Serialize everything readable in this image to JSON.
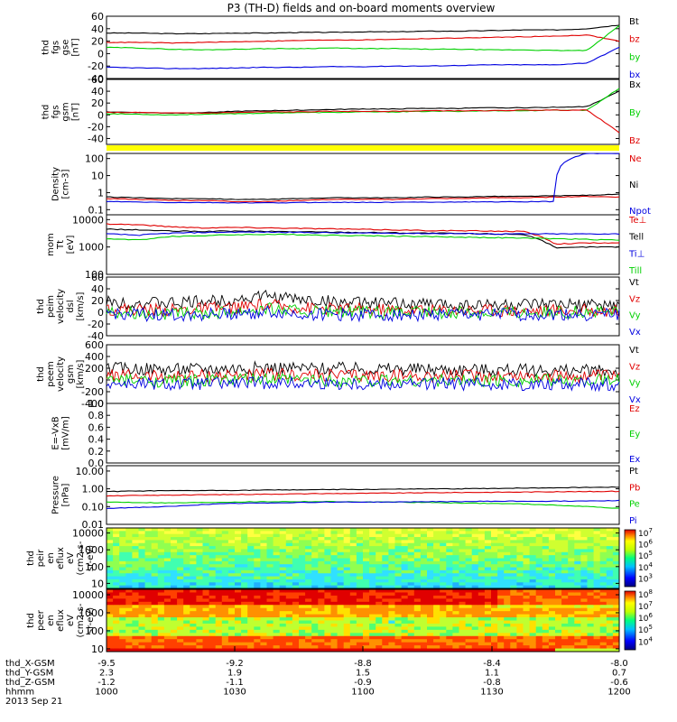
{
  "title": "P3 (TH-D) fields and on-board moments overview",
  "colors": {
    "black": "#000000",
    "red": "#e00000",
    "green": "#00d000",
    "blue": "#0000e0",
    "yellow": "#ffff00"
  },
  "chart_data": [
    {
      "type": "line",
      "id": "fgs_gse",
      "ylabel": [
        "thd",
        "fgs",
        "gse",
        "[nT]"
      ],
      "ylim": [
        -40,
        60
      ],
      "yticks": [
        "-40",
        "-20",
        "0",
        "20",
        "40",
        "60"
      ],
      "series": [
        {
          "name": "Bt",
          "color": "black",
          "label_color": "black",
          "values": [
            33,
            33,
            32,
            32,
            33,
            33,
            34,
            34,
            35,
            35,
            36,
            36,
            37,
            38,
            38,
            40,
            46
          ]
        },
        {
          "name": "bz",
          "color": "red",
          "label_color": "red",
          "values": [
            18,
            18,
            17,
            18,
            19,
            20,
            21,
            22,
            22,
            23,
            24,
            25,
            26,
            27,
            28,
            30,
            20
          ]
        },
        {
          "name": "by",
          "color": "green",
          "label_color": "green",
          "values": [
            10,
            9,
            7,
            6,
            7,
            8,
            8,
            9,
            8,
            8,
            7,
            7,
            6,
            6,
            5,
            5,
            45
          ]
        },
        {
          "name": "bx",
          "color": "blue",
          "label_color": "blue",
          "values": [
            -22,
            -23,
            -24,
            -24,
            -23,
            -22,
            -22,
            -21,
            -21,
            -20,
            -20,
            -19,
            -18,
            -18,
            -18,
            -15,
            10
          ]
        }
      ]
    },
    {
      "type": "line",
      "id": "fgs_gsm",
      "ylabel": [
        "thd",
        "fgs",
        "gsm",
        "[nT]"
      ],
      "ylim": [
        -50,
        60
      ],
      "yticks": [
        "-40",
        "-20",
        "0",
        "20",
        "40",
        "60"
      ],
      "series": [
        {
          "name": "Bx",
          "color": "black",
          "label_color": "black",
          "values": [
            5,
            4,
            3,
            4,
            6,
            7,
            8,
            9,
            10,
            10,
            11,
            11,
            12,
            12,
            13,
            14,
            40
          ]
        },
        {
          "name": "By",
          "color": "green",
          "label_color": "green",
          "values": [
            2,
            1,
            0,
            1,
            2,
            3,
            4,
            4,
            5,
            5,
            6,
            6,
            7,
            7,
            8,
            8,
            45
          ]
        },
        {
          "name": "Bz",
          "color": "red",
          "label_color": "red",
          "values": [
            4,
            4,
            3,
            3,
            4,
            5,
            5,
            6,
            6,
            6,
            7,
            7,
            7,
            8,
            8,
            8,
            -30
          ]
        }
      ]
    },
    {
      "type": "line",
      "id": "density",
      "ylabel": [
        "Density",
        "[cm-3]"
      ],
      "log": true,
      "ylim": [
        0.05,
        200
      ],
      "yticks": [
        "100",
        "10",
        "1",
        "0.1"
      ],
      "series": [
        {
          "name": "Ne",
          "color": "red",
          "label_color": "red",
          "values": [
            0.45,
            0.4,
            0.35,
            0.35,
            0.3,
            0.3,
            0.35,
            0.4,
            0.4,
            0.4,
            0.45,
            0.45,
            0.5,
            0.5,
            0.55,
            0.6,
            0.55
          ]
        },
        {
          "name": "Ni",
          "color": "black",
          "label_color": "black",
          "values": [
            0.55,
            0.5,
            0.45,
            0.45,
            0.4,
            0.4,
            0.45,
            0.5,
            0.5,
            0.5,
            0.55,
            0.55,
            0.6,
            0.6,
            0.65,
            0.7,
            0.8
          ]
        },
        {
          "name": "Npot",
          "color": "blue",
          "label_color": "blue",
          "values": [
            0.3,
            0.28,
            0.26,
            0.26,
            0.25,
            0.25,
            0.26,
            0.27,
            0.27,
            0.27,
            0.28,
            0.28,
            0.29,
            0.29,
            0.3,
            200,
            200
          ]
        }
      ]
    },
    {
      "type": "line",
      "id": "temperature",
      "ylabel": [
        "mom",
        "Tt",
        "[eV]"
      ],
      "log": true,
      "ylim": [
        100,
        15000
      ],
      "yticks": [
        "10000",
        "1000",
        "100"
      ],
      "series": [
        {
          "name": "Te⊥",
          "color": "red",
          "label_color": "red",
          "values": [
            7000,
            6500,
            5500,
            5000,
            5200,
            5000,
            4800,
            4600,
            4400,
            4200,
            4000,
            3900,
            3800,
            3700,
            1300,
            1400,
            1400
          ]
        },
        {
          "name": "Tell",
          "color": "black",
          "label_color": "black",
          "values": [
            4500,
            4200,
            3800,
            3700,
            3800,
            3700,
            3600,
            3500,
            3400,
            3300,
            3200,
            3100,
            3000,
            2900,
            900,
            1000,
            1000
          ]
        },
        {
          "name": "Ti⊥",
          "color": "blue",
          "label_color": "blue",
          "values": [
            3000,
            2700,
            3200,
            3400,
            3500,
            3500,
            3400,
            3300,
            3200,
            3200,
            3100,
            3100,
            3000,
            3000,
            3000,
            3000,
            3000
          ]
        },
        {
          "name": "Till",
          "color": "green",
          "label_color": "green",
          "values": [
            2000,
            1800,
            2400,
            2600,
            2800,
            2900,
            2800,
            2700,
            2600,
            2500,
            2400,
            2300,
            2200,
            2100,
            2000,
            1900,
            1800
          ]
        }
      ]
    },
    {
      "type": "line",
      "id": "velocity_dsl",
      "ylabel": [
        "thd",
        "peim",
        "velocity",
        "dsl",
        "[km/s]"
      ],
      "ylim": [
        -40,
        60
      ],
      "yticks": [
        "-40",
        "-20",
        "0",
        "20",
        "40",
        "60"
      ],
      "noisy": true,
      "series": [
        {
          "name": "Vt",
          "color": "black",
          "label_color": "black",
          "values": [
            18,
            16,
            15,
            18,
            22,
            28,
            22,
            18,
            15,
            14,
            14,
            13,
            13,
            12,
            12,
            12,
            12
          ]
        },
        {
          "name": "Vz",
          "color": "red",
          "label_color": "red",
          "values": [
            6,
            5,
            4,
            6,
            8,
            12,
            8,
            6,
            5,
            4,
            4,
            4,
            4,
            3,
            3,
            3,
            3
          ]
        },
        {
          "name": "Vy",
          "color": "green",
          "label_color": "green",
          "values": [
            2,
            0,
            -4,
            -2,
            2,
            6,
            2,
            0,
            -1,
            -1,
            0,
            0,
            0,
            0,
            0,
            0,
            0
          ]
        },
        {
          "name": "Vx",
          "color": "blue",
          "label_color": "blue",
          "values": [
            -2,
            -4,
            -5,
            -4,
            -2,
            0,
            -3,
            -4,
            -4,
            -4,
            -4,
            -4,
            -4,
            -4,
            -4,
            -4,
            -4
          ]
        }
      ]
    },
    {
      "type": "line",
      "id": "velocity_gsm",
      "ylabel": [
        "thd",
        "peem",
        "velocity",
        "gsm",
        "[km/s]"
      ],
      "ylim": [
        -400,
        600
      ],
      "yticks": [
        "-400",
        "-200",
        "0",
        "200",
        "400",
        "600"
      ],
      "noisy": true,
      "series": [
        {
          "name": "Vt",
          "color": "black",
          "label_color": "black",
          "values": [
            200,
            190,
            180,
            190,
            200,
            210,
            200,
            195,
            190,
            185,
            180,
            175,
            170,
            165,
            160,
            155,
            150
          ]
        },
        {
          "name": "Vz",
          "color": "red",
          "label_color": "red",
          "values": [
            80,
            70,
            60,
            70,
            80,
            90,
            80,
            75,
            70,
            70,
            70,
            70,
            70,
            65,
            60,
            60,
            60
          ]
        },
        {
          "name": "Vy",
          "color": "green",
          "label_color": "green",
          "values": [
            0,
            -10,
            -20,
            -10,
            0,
            10,
            0,
            -5,
            -10,
            -10,
            -10,
            -10,
            -10,
            -10,
            -10,
            -10,
            -10
          ]
        },
        {
          "name": "Vx",
          "color": "blue",
          "label_color": "blue",
          "values": [
            -60,
            -70,
            -80,
            -70,
            -60,
            -50,
            -60,
            -65,
            -70,
            -70,
            -70,
            -70,
            -70,
            -70,
            -70,
            -70,
            -70
          ]
        }
      ]
    },
    {
      "type": "line",
      "id": "efield",
      "ylabel": [
        "E=-VxB",
        "[mV/m]"
      ],
      "ylim": [
        0,
        1
      ],
      "yticks": [
        "0.0",
        "0.2",
        "0.4",
        "0.6",
        "0.8",
        "1.0"
      ],
      "series": [
        {
          "name": "Ez",
          "color": "red",
          "label_color": "red",
          "values": []
        },
        {
          "name": "Ey",
          "color": "green",
          "label_color": "green",
          "values": []
        },
        {
          "name": "Ex",
          "color": "blue",
          "label_color": "blue",
          "values": []
        }
      ]
    },
    {
      "type": "line",
      "id": "pressure",
      "ylabel": [
        "Pressure",
        "[nPa]"
      ],
      "log": true,
      "ylim": [
        0.01,
        20
      ],
      "yticks": [
        "10.00",
        "1.00",
        "0.10",
        "0.01"
      ],
      "series": [
        {
          "name": "Pt",
          "color": "black",
          "label_color": "black",
          "values": [
            0.7,
            0.75,
            0.78,
            0.8,
            0.82,
            0.85,
            0.88,
            0.9,
            0.92,
            0.95,
            0.98,
            1.0,
            1.05,
            1.1,
            1.15,
            1.2,
            1.25
          ]
        },
        {
          "name": "Pb",
          "color": "red",
          "label_color": "red",
          "values": [
            0.4,
            0.42,
            0.44,
            0.46,
            0.48,
            0.5,
            0.52,
            0.54,
            0.56,
            0.58,
            0.6,
            0.62,
            0.64,
            0.66,
            0.68,
            0.7,
            0.72
          ]
        },
        {
          "name": "Pe",
          "color": "green",
          "label_color": "green",
          "values": [
            0.18,
            0.17,
            0.16,
            0.17,
            0.18,
            0.19,
            0.19,
            0.19,
            0.18,
            0.18,
            0.17,
            0.16,
            0.15,
            0.14,
            0.12,
            0.1,
            0.08
          ]
        },
        {
          "name": "Pi",
          "color": "blue",
          "label_color": "blue",
          "values": [
            0.08,
            0.09,
            0.1,
            0.13,
            0.15,
            0.16,
            0.17,
            0.18,
            0.18,
            0.18,
            0.19,
            0.19,
            0.2,
            0.2,
            0.2,
            0.21,
            0.22
          ]
        }
      ]
    },
    {
      "type": "heatmap",
      "id": "peir_en_eflux",
      "ylabel": [
        "thd",
        "peir",
        "en",
        "eflux",
        "eV",
        "(cm2-s-",
        "sr-eV)"
      ],
      "log": true,
      "ylim": [
        5,
        20000
      ],
      "yticks": [
        "10000",
        "1000",
        "100",
        "10"
      ],
      "colorbar_ticks": [
        "10^7",
        "10^6",
        "10^5",
        "10^4",
        "10^3"
      ]
    },
    {
      "type": "heatmap",
      "id": "peer_en_eflux",
      "ylabel": [
        "thd",
        "peer",
        "en",
        "eflux",
        "eV",
        "(cm2-s-",
        "sr-eV)"
      ],
      "log": true,
      "ylim": [
        7,
        20000
      ],
      "yticks": [
        "10000",
        "1000",
        "100",
        "10"
      ],
      "colorbar_ticks": [
        "10^8",
        "10^7",
        "10^6",
        "10^5",
        "10^4"
      ]
    }
  ],
  "x_axis": {
    "rows": [
      {
        "label": "thd_X-GSM",
        "values": [
          "-9.5",
          "-9.2",
          "-8.8",
          "-8.4",
          "-8.0"
        ]
      },
      {
        "label": "thd_Y-GSM",
        "values": [
          "2.3",
          "1.9",
          "1.5",
          "1.1",
          "0.7"
        ]
      },
      {
        "label": "thd_Z-GSM",
        "values": [
          "-1.2",
          "-1.1",
          "-0.9",
          "-0.8",
          "-0.6"
        ]
      },
      {
        "label": "hhmm",
        "values": [
          "1000",
          "1030",
          "1100",
          "1130",
          "1200"
        ]
      }
    ],
    "date": "2013 Sep 21"
  }
}
